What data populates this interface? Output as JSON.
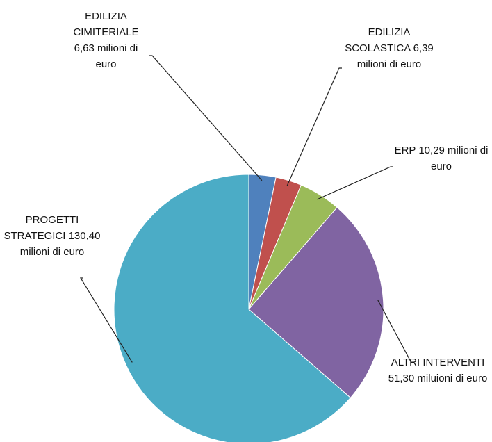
{
  "chart_data": {
    "type": "pie",
    "categories": [
      "EDILIZIA CIMITERIALE",
      "EDILIZIA SCOLASTICA",
      "ERP",
      "ALTRI INTERVENTI",
      "PROGETTI STRATEGICI"
    ],
    "values": [
      6.63,
      6.39,
      10.29,
      51.3,
      130.4
    ],
    "value_labels": [
      "6,63 milioni di euro",
      "6,39 milioni di euro",
      "10,29 milioni di euro",
      "51,30 miluioni di euro",
      "130,40 milioni di euro"
    ],
    "colors": [
      "#4F81BD",
      "#C0504D",
      "#9BBB59",
      "#8064A2",
      "#4BACC6"
    ]
  }
}
